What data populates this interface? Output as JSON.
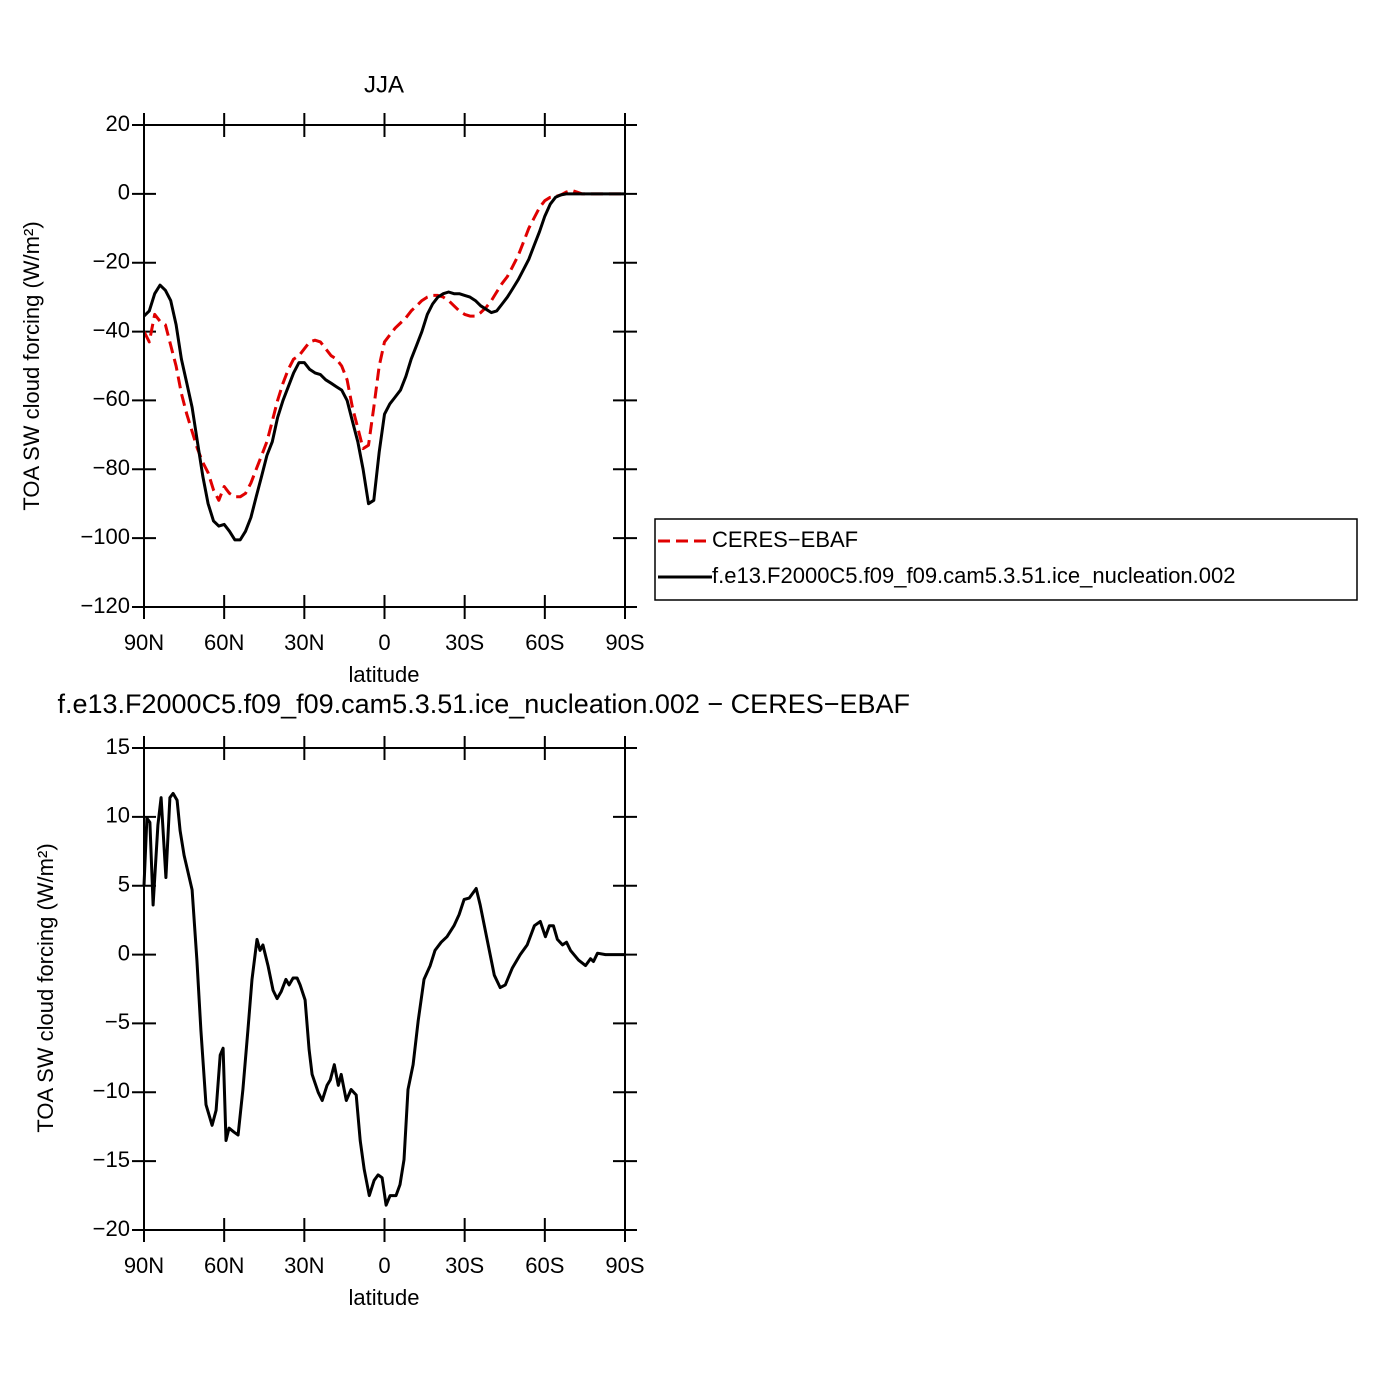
{
  "chart_data": [
    {
      "type": "line",
      "title": "JJA",
      "xlabel": "latitude",
      "ylabel": "TOA SW cloud forcing (W/m²)",
      "x": [
        90,
        88,
        86,
        84,
        82,
        80,
        78,
        76,
        74,
        72,
        70,
        68,
        66,
        64,
        62,
        60,
        58,
        56,
        54,
        52,
        50,
        48,
        46,
        44,
        42,
        40,
        38,
        36,
        34,
        32,
        30,
        28,
        26,
        24,
        22,
        20,
        18,
        16,
        14,
        12,
        10,
        8,
        6,
        4,
        2,
        0,
        -2,
        -4,
        -6,
        -8,
        -10,
        -12,
        -14,
        -16,
        -18,
        -20,
        -22,
        -24,
        -26,
        -28,
        -30,
        -32,
        -34,
        -36,
        -38,
        -40,
        -42,
        -44,
        -46,
        -48,
        -50,
        -52,
        -54,
        -56,
        -58,
        -60,
        -62,
        -64,
        -66,
        -68,
        -70,
        -72,
        -74,
        -76,
        -78,
        -80,
        -82,
        -84,
        -86,
        -88,
        -90
      ],
      "series": [
        {
          "name": "CERES−EBAF",
          "color": "#e00000",
          "line_style": "dashed",
          "values": [
            -40,
            -43,
            -35,
            -37,
            -38,
            -44,
            -50,
            -58,
            -64,
            -69,
            -74,
            -78,
            -81,
            -86,
            -89,
            -85,
            -87,
            -88,
            -88,
            -87,
            -84,
            -80,
            -76,
            -72,
            -66,
            -60,
            -55,
            -51,
            -48,
            -47,
            -45,
            -43,
            -42.5,
            -43,
            -45,
            -47,
            -48,
            -50,
            -54,
            -62,
            -68,
            -74,
            -73,
            -62,
            -50,
            -43,
            -41,
            -39,
            -37.5,
            -36,
            -34,
            -32.5,
            -31,
            -30,
            -29.5,
            -29.5,
            -30,
            -31,
            -32.5,
            -34,
            -35,
            -35.5,
            -35.5,
            -34.5,
            -33,
            -31,
            -28.5,
            -26,
            -24,
            -21,
            -18,
            -14,
            -10,
            -7,
            -4,
            -2,
            -1,
            -0.8,
            -0.3,
            0.5,
            1,
            0.5,
            0,
            0,
            0,
            0,
            0,
            0,
            0,
            0,
            0
          ]
        },
        {
          "name": "f.e13.F2000C5.f09_f09.cam5.3.51.ice_nucleation.002",
          "color": "#000000",
          "line_style": "solid",
          "values": [
            -35.5,
            -34,
            -29,
            -26.5,
            -28,
            -31,
            -38,
            -48,
            -55,
            -62,
            -72,
            -82,
            -90,
            -95,
            -96.5,
            -96,
            -98,
            -100.5,
            -100.5,
            -98,
            -94,
            -88,
            -82,
            -76,
            -72,
            -65,
            -60,
            -56,
            -52,
            -49,
            -49,
            -51,
            -52,
            -52.5,
            -54,
            -55,
            -56,
            -57,
            -60,
            -66,
            -72,
            -80,
            -90,
            -89,
            -75,
            -64,
            -61,
            -59,
            -57,
            -53,
            -48,
            -44,
            -40,
            -35,
            -32,
            -30,
            -29,
            -28.5,
            -29,
            -29,
            -29.5,
            -30,
            -31,
            -32.5,
            -33.5,
            -34.5,
            -34,
            -32,
            -30,
            -27.5,
            -25,
            -22,
            -19,
            -15,
            -11,
            -6.5,
            -3,
            -1,
            -0.3,
            0,
            0,
            0,
            0,
            0,
            0,
            0,
            0,
            0,
            0,
            0,
            0
          ]
        }
      ],
      "xlim": [
        90,
        -90
      ],
      "xticks": [
        {
          "value": 90,
          "label": "90N"
        },
        {
          "value": 60,
          "label": "60N"
        },
        {
          "value": 30,
          "label": "30N"
        },
        0,
        {
          "value": -30,
          "label": "30S"
        },
        {
          "value": -60,
          "label": "60S"
        },
        {
          "value": -90,
          "label": "90S"
        }
      ],
      "ylim": [
        -120,
        20
      ],
      "yticks": [
        {
          "value": -120,
          "label": "−120"
        },
        {
          "value": -100,
          "label": "−100"
        },
        {
          "value": -80,
          "label": "−80"
        },
        {
          "value": -60,
          "label": "−60"
        },
        {
          "value": -40,
          "label": "−40"
        },
        {
          "value": -20,
          "label": "−20"
        },
        0,
        20
      ],
      "legend": "right"
    },
    {
      "type": "line",
      "title": "f.e13.F2000C5.f09_f09.cam5.3.51.ice_nucleation.002  −  CERES−EBAF",
      "xlabel": "latitude",
      "ylabel": "TOA SW cloud forcing (W/m²)",
      "x": [
        90,
        88.9,
        87.8,
        86.6,
        84.8,
        83.6,
        81.8,
        80.3,
        79.1,
        77.6,
        76.5,
        75,
        73.9,
        72,
        70.2,
        68.7,
        66.8,
        64.5,
        63,
        61.5,
        60.4,
        59.3,
        58.2,
        56.3,
        54.8,
        53,
        51.1,
        49.6,
        47.7,
        46.6,
        45.5,
        43.6,
        41.7,
        40.2,
        38.7,
        36.9,
        35.7,
        34.2,
        32.7,
        31.6,
        29.7,
        28.2,
        27.1,
        24.8,
        23.3,
        21.5,
        20.3,
        18.8,
        17.3,
        16.2,
        14.3,
        12.5,
        10.6,
        9.1,
        7.6,
        5.7,
        3.9,
        2.4,
        0.9,
        -0.6,
        -2.1,
        -4.3,
        -5.8,
        -7.3,
        -8.8,
        -10.7,
        -12.6,
        -14.8,
        -17.1,
        -18.9,
        -21.2,
        -23.4,
        -26,
        -27.9,
        -29.8,
        -31.7,
        -33.2,
        -34.3,
        -35.8,
        -38.4,
        -41.1,
        -43.3,
        -45.2,
        -47.8,
        -50.8,
        -53.4,
        -56.1,
        -58.3,
        -60.2,
        -61.7,
        -63.2,
        -64.7,
        -66.6,
        -68.1,
        -69.6,
        -72.6,
        -75.2,
        -77.1,
        -78.2,
        -79.7,
        -82.7,
        -90
      ],
      "values": [
        5,
        9.9,
        9.6,
        3.6,
        9.4,
        11.4,
        5.6,
        11.4,
        11.7,
        11.2,
        9,
        7.2,
        6.3,
        4.7,
        -0.4,
        -5.5,
        -10.9,
        -12.4,
        -11.3,
        -7.3,
        -6.8,
        -13.5,
        -12.6,
        -12.9,
        -13.1,
        -9.8,
        -5.5,
        -1.8,
        1.1,
        0.3,
        0.7,
        -0.8,
        -2.6,
        -3.2,
        -2.7,
        -1.8,
        -2.2,
        -1.7,
        -1.7,
        -2.2,
        -3.3,
        -6.9,
        -8.7,
        -10,
        -10.6,
        -9.5,
        -9.1,
        -8,
        -9.5,
        -8.7,
        -10.6,
        -9.8,
        -10.2,
        -13.5,
        -15.6,
        -17.5,
        -16.4,
        -16,
        -16.2,
        -18.2,
        -17.5,
        -17.5,
        -16.7,
        -14.9,
        -9.8,
        -8,
        -4.8,
        -1.8,
        -0.8,
        0.3,
        0.9,
        1.3,
        2.1,
        2.9,
        4,
        4.1,
        4.5,
        4.8,
        3.6,
        1.1,
        -1.5,
        -2.4,
        -2.2,
        -1,
        0,
        0.7,
        2.1,
        2.4,
        1.3,
        2.1,
        2.1,
        1.1,
        0.7,
        0.9,
        0.3,
        -0.4,
        -0.8,
        -0.3,
        -0.5,
        0.1,
        0,
        0
      ],
      "color": "#000000",
      "xlim": [
        90,
        -90
      ],
      "xticks": [
        {
          "value": 90,
          "label": "90N"
        },
        {
          "value": 60,
          "label": "60N"
        },
        {
          "value": 30,
          "label": "30N"
        },
        0,
        {
          "value": -30,
          "label": "30S"
        },
        {
          "value": -60,
          "label": "60S"
        },
        {
          "value": -90,
          "label": "90S"
        }
      ],
      "ylim": [
        -20,
        15
      ],
      "yticks": [
        {
          "value": -20,
          "label": "−20"
        },
        {
          "value": -15,
          "label": "−15"
        },
        {
          "value": -10,
          "label": "−10"
        },
        {
          "value": -5,
          "label": "−5"
        },
        0,
        5,
        10,
        15
      ]
    }
  ]
}
